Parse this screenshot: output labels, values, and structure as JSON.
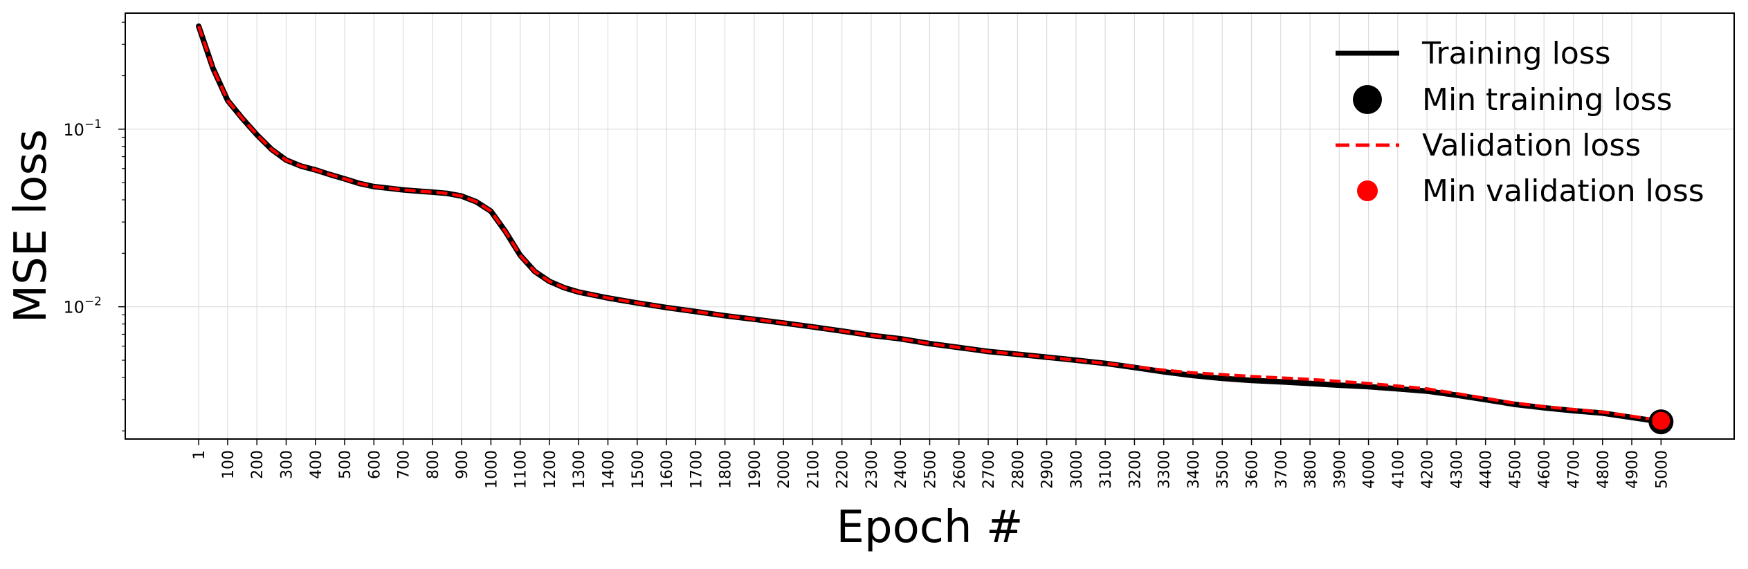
{
  "chart_data": {
    "type": "line",
    "xlabel": "Epoch #",
    "ylabel": "MSE loss",
    "yscale": "log",
    "ylim": [
      0.0018,
      0.45
    ],
    "xlim": [
      -250,
      5250
    ],
    "grid": true,
    "legend_position": "top-right",
    "x_ticks": [
      1,
      100,
      200,
      300,
      400,
      500,
      600,
      700,
      800,
      900,
      1000,
      1100,
      1200,
      1300,
      1400,
      1500,
      1600,
      1700,
      1800,
      1900,
      2000,
      2100,
      2200,
      2300,
      2400,
      2500,
      2600,
      2700,
      2800,
      2900,
      3000,
      3100,
      3200,
      3300,
      3400,
      3500,
      3600,
      3700,
      3800,
      3900,
      4000,
      4100,
      4200,
      4300,
      4400,
      4500,
      4600,
      4700,
      4800,
      4900,
      5000
    ],
    "y_ticks": [
      {
        "value": 0.1,
        "base": "10",
        "exp": "−1"
      },
      {
        "value": 0.01,
        "base": "10",
        "exp": "−2"
      }
    ],
    "series": [
      {
        "name": "Training loss",
        "color": "#000000",
        "style": "solid",
        "x": [
          1,
          50,
          100,
          150,
          200,
          250,
          300,
          350,
          400,
          450,
          500,
          550,
          600,
          650,
          700,
          750,
          800,
          850,
          900,
          950,
          1000,
          1050,
          1100,
          1150,
          1200,
          1250,
          1300,
          1400,
          1500,
          1600,
          1700,
          1800,
          1900,
          2000,
          2100,
          2200,
          2300,
          2400,
          2500,
          2600,
          2700,
          2800,
          2900,
          3000,
          3100,
          3200,
          3300,
          3400,
          3500,
          3600,
          3700,
          3800,
          3900,
          4000,
          4100,
          4200,
          4300,
          4400,
          4500,
          4600,
          4700,
          4800,
          4900,
          5000
        ],
        "y": [
          0.38,
          0.22,
          0.145,
          0.115,
          0.093,
          0.077,
          0.067,
          0.062,
          0.059,
          0.0555,
          0.0525,
          0.0495,
          0.0475,
          0.0465,
          0.0455,
          0.0448,
          0.0442,
          0.0435,
          0.042,
          0.039,
          0.0345,
          0.0265,
          0.0195,
          0.0158,
          0.0139,
          0.0128,
          0.0121,
          0.0112,
          0.0105,
          0.0099,
          0.0094,
          0.0089,
          0.0085,
          0.0081,
          0.0077,
          0.0073,
          0.0069,
          0.0066,
          0.0062,
          0.0059,
          0.0056,
          0.0054,
          0.0052,
          0.005,
          0.0048,
          0.00455,
          0.0043,
          0.0041,
          0.00395,
          0.00385,
          0.00378,
          0.0037,
          0.00362,
          0.00355,
          0.00345,
          0.00335,
          0.00318,
          0.003,
          0.00282,
          0.0027,
          0.0026,
          0.00252,
          0.00238,
          0.00225
        ]
      },
      {
        "name": "Validation loss",
        "color": "#ff0000",
        "style": "dashed",
        "x": [
          1,
          50,
          100,
          150,
          200,
          250,
          300,
          350,
          400,
          450,
          500,
          550,
          600,
          650,
          700,
          750,
          800,
          850,
          900,
          950,
          1000,
          1050,
          1100,
          1150,
          1200,
          1250,
          1300,
          1400,
          1500,
          1600,
          1700,
          1800,
          1900,
          2000,
          2100,
          2200,
          2300,
          2400,
          2500,
          2600,
          2700,
          2800,
          2900,
          3000,
          3100,
          3200,
          3300,
          3400,
          3500,
          3600,
          3700,
          3800,
          3900,
          4000,
          4100,
          4200,
          4300,
          4400,
          4500,
          4600,
          4700,
          4800,
          4900,
          5000
        ],
        "y": [
          0.38,
          0.22,
          0.145,
          0.115,
          0.093,
          0.077,
          0.067,
          0.062,
          0.059,
          0.0555,
          0.0525,
          0.0495,
          0.0475,
          0.0465,
          0.0455,
          0.0448,
          0.0442,
          0.0435,
          0.042,
          0.039,
          0.0345,
          0.0265,
          0.0195,
          0.0158,
          0.0139,
          0.0128,
          0.0121,
          0.0112,
          0.0105,
          0.0099,
          0.0094,
          0.0089,
          0.0085,
          0.0081,
          0.0077,
          0.0073,
          0.0069,
          0.0066,
          0.0062,
          0.0059,
          0.0056,
          0.0054,
          0.0052,
          0.005,
          0.0048,
          0.0046,
          0.0044,
          0.00425,
          0.00415,
          0.00405,
          0.00398,
          0.0039,
          0.0038,
          0.0037,
          0.00358,
          0.00345,
          0.00325,
          0.00305,
          0.00287,
          0.00274,
          0.00264,
          0.00255,
          0.00242,
          0.00228
        ]
      }
    ],
    "markers": [
      {
        "name": "Min training loss",
        "x": 5000,
        "y": 0.00225,
        "color": "#000000"
      },
      {
        "name": "Min validation loss",
        "x": 5000,
        "y": 0.00228,
        "color": "#ff0000"
      }
    ],
    "legend": [
      {
        "label": "Training loss",
        "kind": "line-solid",
        "color": "#000000"
      },
      {
        "label": "Min training loss",
        "kind": "marker-large",
        "color": "#000000"
      },
      {
        "label": "Validation loss",
        "kind": "line-dashed",
        "color": "#ff0000"
      },
      {
        "label": "Min validation loss",
        "kind": "marker",
        "color": "#ff0000"
      }
    ]
  }
}
